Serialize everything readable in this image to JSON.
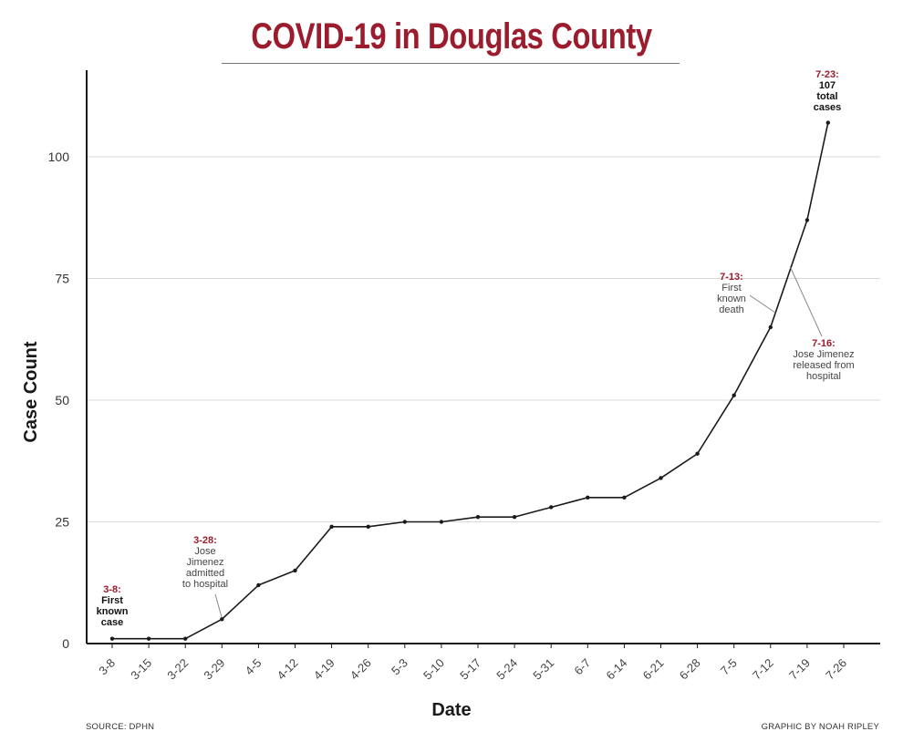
{
  "chart_data": {
    "type": "line",
    "title": "COVID-19 in Douglas County",
    "xlabel": "Date",
    "ylabel": "Case Count",
    "ylim": [
      0,
      115
    ],
    "yticks": [
      0,
      25,
      50,
      75,
      100
    ],
    "grid": "horizontal",
    "x_tick_labels": [
      "3-8",
      "3-15",
      "3-22",
      "3-29",
      "4-5",
      "4-12",
      "4-19",
      "4-26",
      "5-3",
      "5-10",
      "5-17",
      "5-24",
      "5-31",
      "6-7",
      "6-14",
      "6-21",
      "6-28",
      "7-5",
      "7-12",
      "7-19",
      "7-26"
    ],
    "series": [
      {
        "x": [
          "3-8",
          "3-15",
          "3-22",
          "3-29",
          "4-5",
          "4-12",
          "4-19",
          "4-26",
          "5-3",
          "5-10",
          "5-17",
          "5-24",
          "5-31",
          "6-7",
          "6-14",
          "6-21",
          "6-28",
          "7-5",
          "7-12",
          "7-19",
          "7-23"
        ],
        "values": [
          1,
          1,
          1,
          5,
          12,
          15,
          24,
          24,
          25,
          25,
          26,
          26,
          28,
          30,
          30,
          34,
          39,
          51,
          65,
          87,
          107
        ],
        "color": "#1a1a1a"
      }
    ],
    "annotations": [
      {
        "id": "a38",
        "date": "3-8:",
        "lines": [
          "First",
          "known",
          "case"
        ],
        "bold": true
      },
      {
        "id": "a328",
        "date": "3-28:",
        "lines": [
          "Jose",
          "Jimenez",
          "admitted",
          "to hospital"
        ],
        "bold": false
      },
      {
        "id": "a713",
        "date": "7-13:",
        "lines": [
          "First",
          "known",
          "death"
        ],
        "bold": false
      },
      {
        "id": "a716",
        "date": "7-16:",
        "lines": [
          "Jose Jimenez",
          "released from",
          "hospital"
        ],
        "bold": false
      },
      {
        "id": "a723",
        "date": "7-23:",
        "lines": [
          "107",
          "total",
          "cases"
        ],
        "bold": true
      }
    ],
    "colors": {
      "title": "#9b1c2c",
      "annotation_date": "#9b1c2c",
      "line": "#1a1a1a",
      "grid": "#d9d9d9"
    }
  },
  "footer": {
    "source": "SOURCE: DPHN",
    "credit": "GRAPHIC BY NOAH RIPLEY"
  }
}
